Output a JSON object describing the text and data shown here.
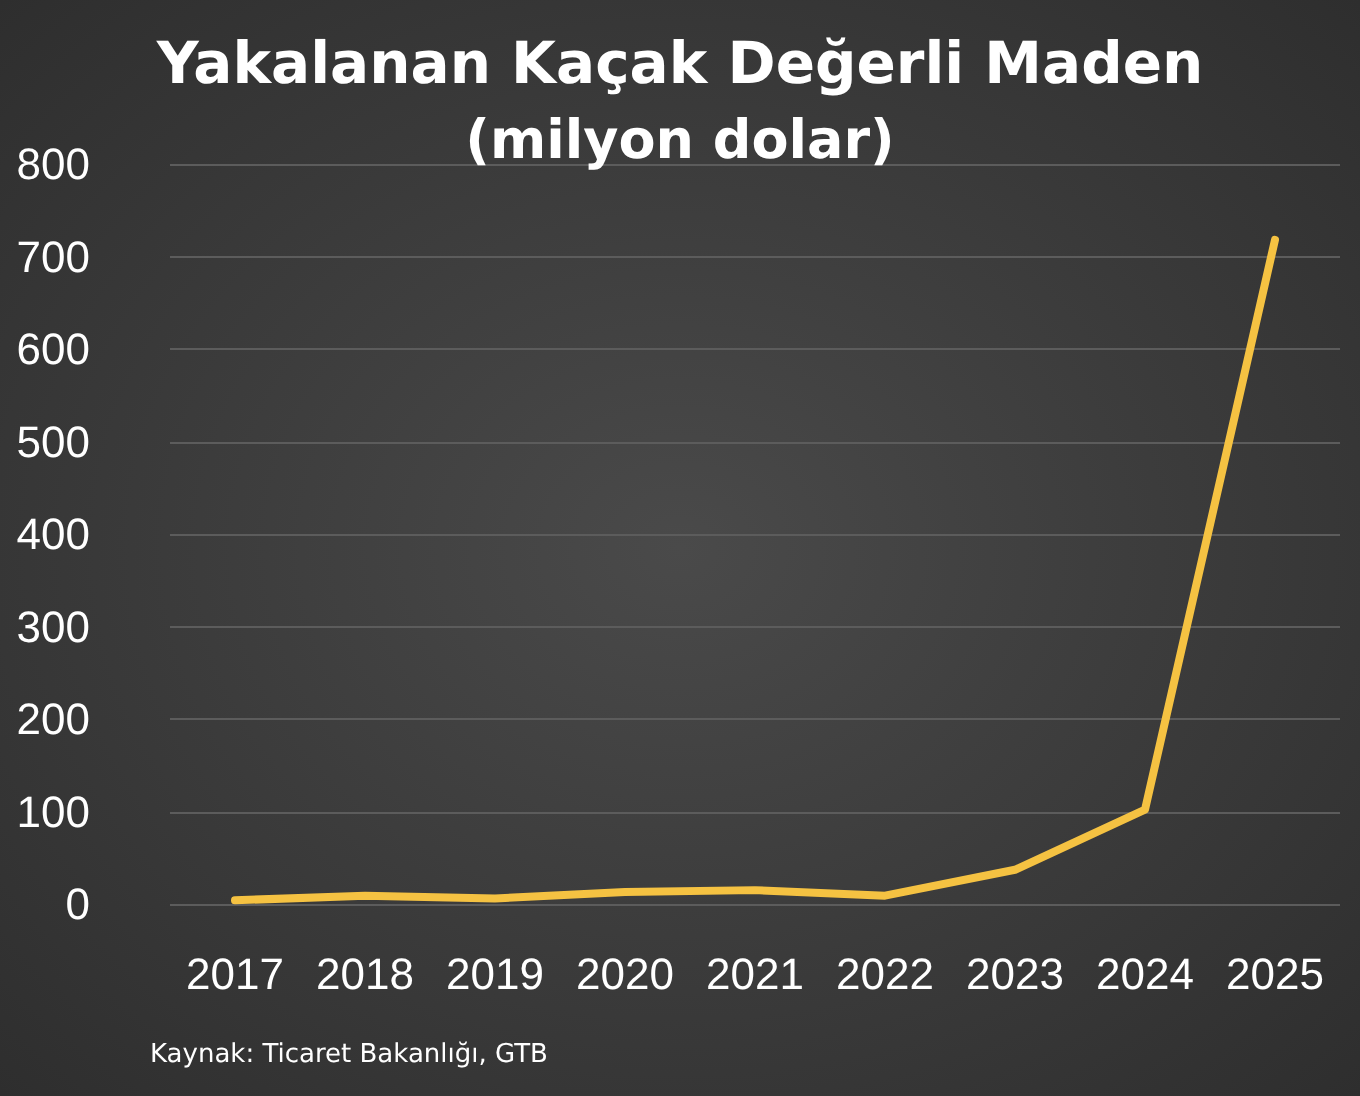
{
  "chart_data": {
    "type": "line",
    "title": "Yakalanan Kaçak Değerli Maden",
    "subtitle": "(milyon dolar)",
    "categories": [
      "2017",
      "2018",
      "2019",
      "2020",
      "2021",
      "2022",
      "2023",
      "2024",
      "2025"
    ],
    "series": [
      {
        "color": "#f5c242",
        "values": [
          4,
          9,
          6,
          13,
          15,
          9,
          37,
          102,
          718
        ]
      }
    ],
    "ylim": [
      0,
      800
    ],
    "yticks": [
      0,
      100,
      200,
      300,
      400,
      500,
      600,
      700,
      800
    ],
    "grid": "y",
    "marker": "none",
    "line_style": "solid",
    "annotations": [
      "Kaynak: Ticaret Bakanlığı, GTB"
    ]
  }
}
